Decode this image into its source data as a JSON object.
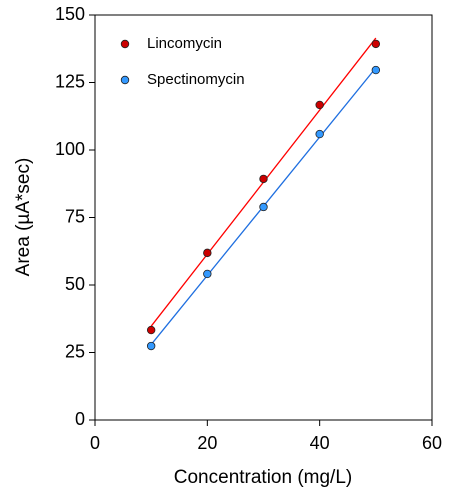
{
  "chart_data": {
    "type": "scatter",
    "x_label": "Concentration (mg/L)",
    "y_label": "Area (µA*sec)",
    "x": [
      10,
      20,
      30,
      40,
      50
    ],
    "series": [
      {
        "name": "Lincomycin",
        "color": "#cc0000",
        "line_color": "#ff0000",
        "values": [
          33.3,
          61.9,
          89.3,
          116.7,
          139.3
        ]
      },
      {
        "name": "Spectinomycin",
        "color": "#3399ff",
        "line_color": "#1f6fe0",
        "values": [
          27.4,
          54.1,
          78.9,
          105.9,
          129.6
        ]
      }
    ],
    "xlim": [
      0,
      60
    ],
    "xticks": [
      0,
      20,
      40,
      60
    ],
    "ylim": [
      0,
      150
    ],
    "yticks": [
      0,
      25,
      50,
      75,
      100,
      125,
      150
    ],
    "fit_lines": true,
    "legend": "top-left"
  }
}
